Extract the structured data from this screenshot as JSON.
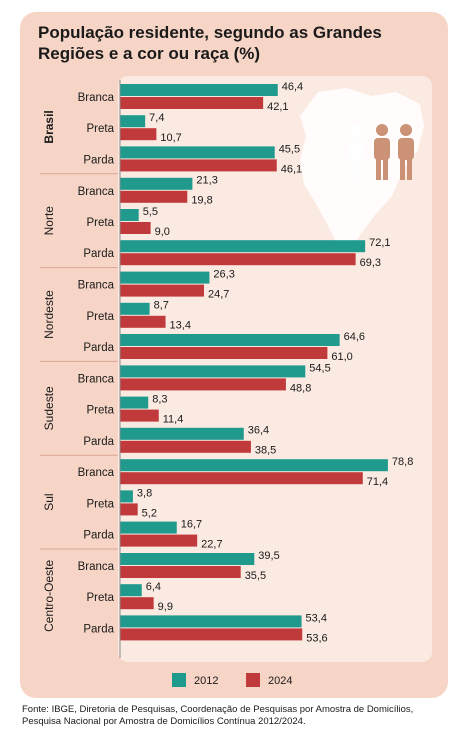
{
  "title": "População residente, segundo as Grandes Regiões e a cor ou raça (%)",
  "footer": "Fonte: IBGE, Diretoria de Pesquisas, Coordenação de Pesquisas por Amostra de Domicílios, Pesquisa Nacional por Amostra de Domicílios Contínua 2012/2024.",
  "colors": {
    "series_2012": "#1f9a8c",
    "series_2024": "#c0393b",
    "card": "#f6d5c6",
    "plot": "#fbeae2",
    "map": "#ffffff",
    "figures": "#c98d70"
  },
  "chart_data": {
    "type": "bar",
    "orientation": "horizontal",
    "title": "População residente, segundo as Grandes Regiões e a cor ou raça (%)",
    "groups": [
      {
        "region": "Brasil",
        "bold": true,
        "rows": [
          {
            "label": "Branca",
            "values": [
              "46,4",
              "42,1"
            ]
          },
          {
            "label": "Preta",
            "values": [
              "7,4",
              "10,7"
            ]
          },
          {
            "label": "Parda",
            "values": [
              "45,5",
              "46,1"
            ]
          }
        ]
      },
      {
        "region": "Norte",
        "bold": false,
        "rows": [
          {
            "label": "Branca",
            "values": [
              "21,3",
              "19,8"
            ]
          },
          {
            "label": "Preta",
            "values": [
              "5,5",
              "9,0"
            ]
          },
          {
            "label": "Parda",
            "values": [
              "72,1",
              "69,3"
            ]
          }
        ]
      },
      {
        "region": "Nordeste",
        "bold": false,
        "rows": [
          {
            "label": "Branca",
            "values": [
              "26,3",
              "24,7"
            ]
          },
          {
            "label": "Preta",
            "values": [
              "8,7",
              "13,4"
            ]
          },
          {
            "label": "Parda",
            "values": [
              "64,6",
              "61,0"
            ]
          }
        ]
      },
      {
        "region": "Sudeste",
        "bold": false,
        "rows": [
          {
            "label": "Branca",
            "values": [
              "54,5",
              "48,8"
            ]
          },
          {
            "label": "Preta",
            "values": [
              "8,3",
              "11,4"
            ]
          },
          {
            "label": "Parda",
            "values": [
              "36,4",
              "38,5"
            ]
          }
        ]
      },
      {
        "region": "Sul",
        "bold": false,
        "rows": [
          {
            "label": "Branca",
            "values": [
              "78,8",
              "71,4"
            ]
          },
          {
            "label": "Preta",
            "values": [
              "3,8",
              "5,2"
            ]
          },
          {
            "label": "Parda",
            "values": [
              "16,7",
              "22,7"
            ]
          }
        ]
      },
      {
        "region": "Centro-Oeste",
        "bold": false,
        "rows": [
          {
            "label": "Branca",
            "values": [
              "39,5",
              "35,5"
            ]
          },
          {
            "label": "Preta",
            "values": [
              "6,4",
              "9,9"
            ]
          },
          {
            "label": "Parda",
            "values": [
              "53,4",
              "53,6"
            ]
          }
        ]
      }
    ],
    "series": [
      {
        "name": "2012"
      },
      {
        "name": "2024"
      }
    ],
    "xlim": [
      0,
      100
    ],
    "legend": "bottom",
    "grid": false
  }
}
